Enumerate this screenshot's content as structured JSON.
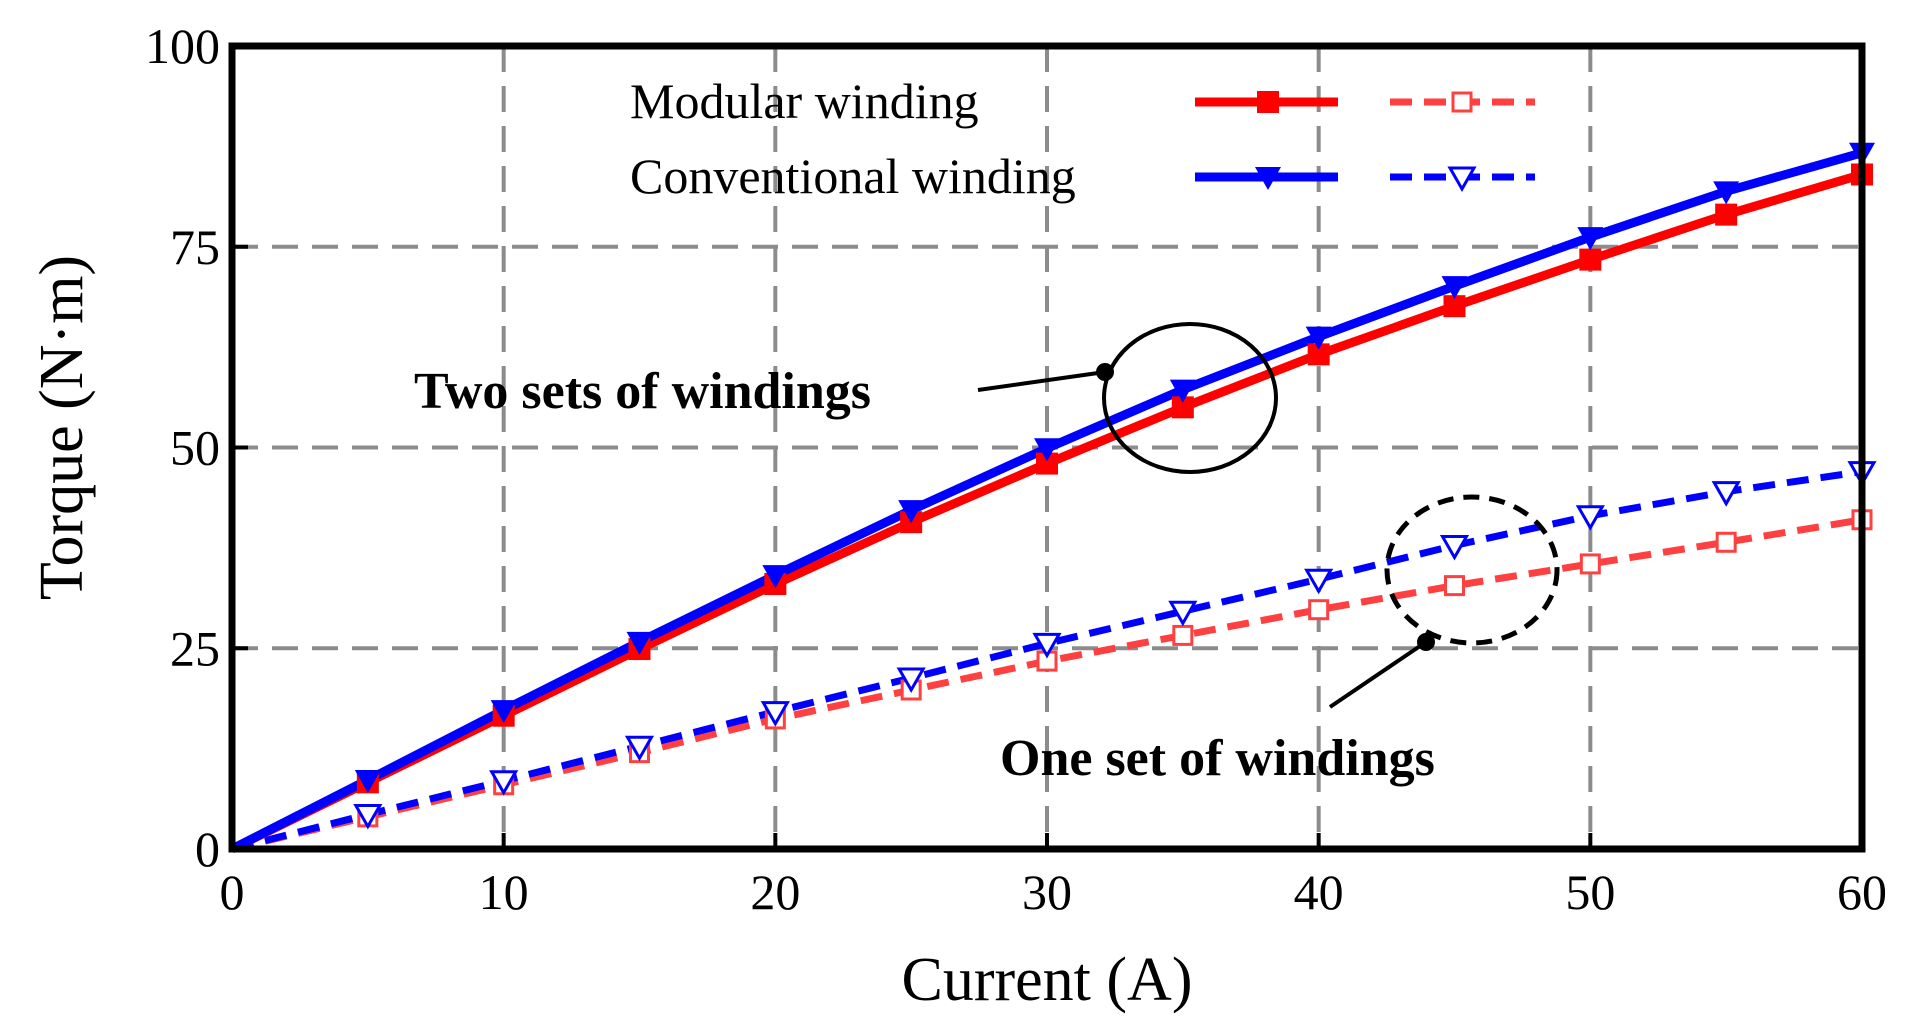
{
  "chart_data": {
    "type": "line",
    "title": "",
    "xlabel": "Current (A)",
    "ylabel": "Torque (N·m)",
    "xlim": [
      0,
      60
    ],
    "ylim": [
      0,
      100
    ],
    "xticks": [
      0,
      10,
      20,
      30,
      40,
      50,
      60
    ],
    "yticks": [
      0,
      25,
      50,
      75,
      100
    ],
    "grid": true,
    "x": [
      0,
      5,
      10,
      15,
      20,
      25,
      30,
      35,
      40,
      45,
      50,
      55,
      60
    ],
    "legend": {
      "placement": "top",
      "rows": [
        {
          "label": "Modular winding",
          "color": "#ff0000"
        },
        {
          "label": "Conventional winding",
          "color": "#0000ff"
        }
      ],
      "column_labels": [
        "Two sets of windings",
        "One set of windings"
      ]
    },
    "series": [
      {
        "name": "Modular winding - Two sets of windings",
        "color": "#ff0000",
        "style": "solid",
        "marker": "filled-square",
        "values": [
          0,
          8.3,
          16.6,
          24.9,
          33.0,
          40.7,
          48.0,
          55.0,
          61.6,
          67.6,
          73.4,
          79.0,
          84.0
        ]
      },
      {
        "name": "Conventional winding - Two sets of windings",
        "color": "#0000ff",
        "style": "solid",
        "marker": "filled-triangle-down",
        "values": [
          0,
          8.6,
          17.3,
          25.8,
          34.1,
          42.2,
          49.9,
          57.2,
          63.8,
          70.1,
          76.2,
          81.9,
          86.7
        ]
      },
      {
        "name": "Modular winding - One set of windings",
        "color": "#ff4040",
        "style": "dashed",
        "marker": "open-square",
        "values": [
          0,
          4.0,
          8.0,
          12.0,
          16.2,
          19.8,
          23.4,
          26.6,
          29.8,
          32.8,
          35.5,
          38.2,
          41.0
        ]
      },
      {
        "name": "Conventional winding - One set of windings",
        "color": "#0000ff",
        "style": "dashed",
        "marker": "open-triangle-down",
        "values": [
          0,
          4.3,
          8.5,
          12.8,
          17.1,
          21.3,
          25.6,
          29.6,
          33.6,
          37.8,
          41.5,
          44.5,
          47.0
        ]
      }
    ],
    "annotations": [
      {
        "text": "Two sets of windings",
        "target": "ellipse around x≈35, y≈56"
      },
      {
        "text": "One set of windings",
        "target": "dashed ellipse around x≈45, y≈35"
      }
    ]
  }
}
